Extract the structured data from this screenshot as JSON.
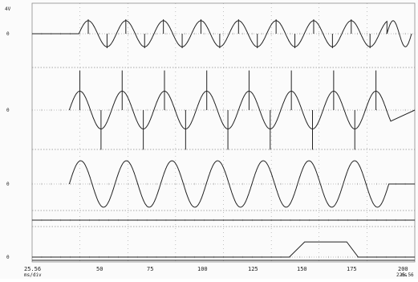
{
  "chart_data": {
    "type": "line",
    "title": "",
    "x_tick_labels": [
      "25.56",
      "50",
      "75",
      "100",
      "125",
      "150",
      "175",
      "200",
      "225.56"
    ],
    "x_unit": "ms",
    "x_bottom_left": "ms/div",
    "ink_color": "#222222",
    "grid_color": "#8a8a8a",
    "panels": [
      {
        "id": "p1",
        "label_top": "4V",
        "label_zero": "0",
        "label_bottom": "",
        "series": [
          {
            "kind": "sine_spiky",
            "x_start": 50,
            "x_end": 211,
            "pre_x": 10,
            "cycles": 8.2,
            "amp": 0.45,
            "spike": 0.5,
            "spike_every": 8.5,
            "tail": true
          }
        ]
      },
      {
        "id": "p2",
        "label_top": "",
        "label_zero": "0",
        "label_bottom": "",
        "series": [
          {
            "kind": "sawtooth_spikes",
            "x_start": 45,
            "x_end": 213,
            "cycles": 7.6,
            "amp": 0.5,
            "spike": 1.05
          }
        ]
      },
      {
        "id": "p3",
        "label_top": "",
        "label_zero": "0",
        "label_bottom": "",
        "series": [
          {
            "kind": "sine",
            "x_start": 45,
            "x_end": 212,
            "cycles": 7.0,
            "amp": 0.85
          }
        ]
      },
      {
        "id": "p4",
        "label_top": "",
        "label_zero": "",
        "label_bottom": "",
        "series": [
          {
            "kind": "flat",
            "x_start": 25.56,
            "x_end": 225.56
          }
        ]
      },
      {
        "id": "p5",
        "label_top": "",
        "label_zero": "0",
        "label_bottom": "",
        "series": [
          {
            "kind": "pulse",
            "x_start": 25.56,
            "x_end": 225.56,
            "rise": 160,
            "high_from": 168,
            "high_to": 190,
            "fall": 196,
            "level": 0.75
          }
        ]
      }
    ]
  }
}
